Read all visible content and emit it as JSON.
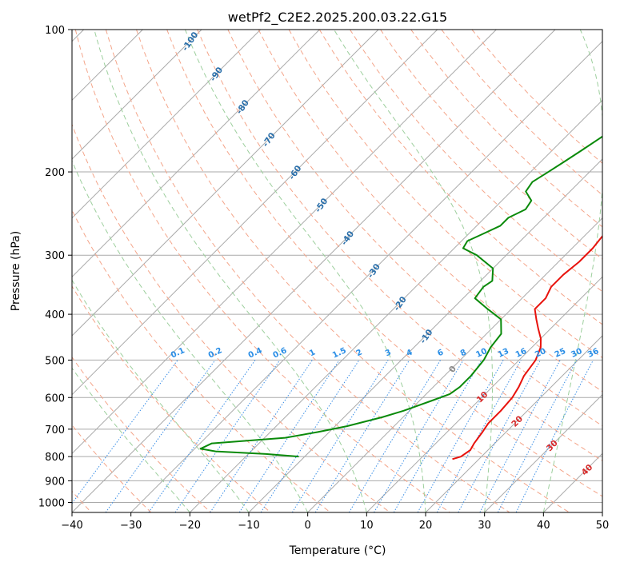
{
  "chart_data": {
    "type": "line",
    "title": "wetPf2_C2E2.2025.200.03.22.G15",
    "xlabel": "Temperature (°C)",
    "ylabel": "Pressure (hPa)",
    "xlim": [
      -40,
      50
    ],
    "ylim": [
      1050,
      100
    ],
    "y_scale": "log",
    "grid": true,
    "x_ticks": [
      -40,
      -30,
      -20,
      -10,
      0,
      10,
      20,
      30,
      40,
      50
    ],
    "x_tick_labels": [
      "−40",
      "−30",
      "−20",
      "−10",
      "0",
      "10",
      "20",
      "30",
      "40",
      "50"
    ],
    "y_ticks": [
      100,
      200,
      300,
      400,
      500,
      600,
      700,
      800,
      900,
      1000
    ],
    "y_tick_labels": [
      "100",
      "200",
      "300",
      "400",
      "500",
      "600",
      "700",
      "800",
      "900",
      "1000"
    ],
    "skew": 45,
    "colors": {
      "temperature": "#e8120c",
      "dewpoint": "#0a8a0a",
      "isotherm": "#aaaaaa",
      "dry_adiabat": "#f4a58a",
      "moist_adiabat": "#9dcf9d",
      "mixing_ratio": "#3a8ee6",
      "dry_adiabat_label": "#d62a2a",
      "moist_adiabat_label": "#2a6faa",
      "mixing_ratio_label": "#2a8ee6",
      "special_adiabat": "#e0cdb0"
    },
    "series": [
      {
        "key": "temperature",
        "points": [
          [
            18.0,
            100
          ],
          [
            14.0,
            110
          ],
          [
            10.0,
            120
          ],
          [
            9.0,
            130
          ],
          [
            8.5,
            140
          ],
          [
            7.5,
            150
          ],
          [
            6.0,
            170
          ],
          [
            5.0,
            190
          ],
          [
            4.5,
            210
          ],
          [
            3.5,
            230
          ],
          [
            3.0,
            250
          ],
          [
            3.0,
            270
          ],
          [
            3.5,
            290
          ],
          [
            3.5,
            310
          ],
          [
            3.0,
            330
          ],
          [
            3.0,
            350
          ],
          [
            4.0,
            370
          ],
          [
            4.0,
            390
          ],
          [
            6.0,
            410
          ],
          [
            8.0,
            430
          ],
          [
            10.0,
            450
          ],
          [
            11.5,
            470
          ],
          [
            12.8,
            500
          ],
          [
            13.5,
            540
          ],
          [
            14.5,
            570
          ],
          [
            15.2,
            600
          ],
          [
            15.5,
            640
          ],
          [
            15.5,
            680
          ],
          [
            16.0,
            710
          ],
          [
            16.5,
            750
          ],
          [
            17.0,
            775
          ],
          [
            16.5,
            800
          ],
          [
            15.5,
            810
          ]
        ]
      },
      {
        "key": "dewpoint",
        "points": [
          [
            -11.0,
            100
          ],
          [
            -11.0,
            110
          ],
          [
            -11.5,
            120
          ],
          [
            -11.0,
            130
          ],
          [
            -12.0,
            140
          ],
          [
            -13.0,
            150
          ],
          [
            -13.0,
            160
          ],
          [
            -14.0,
            170
          ],
          [
            -15.0,
            180
          ],
          [
            -16.0,
            190
          ],
          [
            -17.0,
            200
          ],
          [
            -18.0,
            210
          ],
          [
            -17.5,
            220
          ],
          [
            -15.0,
            230
          ],
          [
            -14.5,
            240
          ],
          [
            -16.0,
            250
          ],
          [
            -16.0,
            260
          ],
          [
            -17.5,
            270
          ],
          [
            -19.0,
            280
          ],
          [
            -18.5,
            290
          ],
          [
            -15.0,
            300
          ],
          [
            -10.0,
            320
          ],
          [
            -8.0,
            340
          ],
          [
            -8.5,
            350
          ],
          [
            -8.0,
            370
          ],
          [
            -4.0,
            390
          ],
          [
            0.0,
            410
          ],
          [
            2.5,
            440
          ],
          [
            3.0,
            470
          ],
          [
            4.0,
            500
          ],
          [
            4.5,
            540
          ],
          [
            4.5,
            570
          ],
          [
            4.0,
            590
          ],
          [
            2.0,
            610
          ],
          [
            -1.0,
            640
          ],
          [
            -3.5,
            660
          ],
          [
            -8.0,
            690
          ],
          [
            -12.0,
            710
          ],
          [
            -16.5,
            730
          ],
          [
            -28.0,
            750
          ],
          [
            -29.0,
            770
          ],
          [
            -26.0,
            780
          ],
          [
            -17.0,
            790
          ],
          [
            -11.0,
            800
          ]
        ]
      }
    ],
    "dry_adiabats": [
      -50,
      -40,
      -30,
      -20,
      -10,
      0,
      10,
      20,
      30,
      40,
      50,
      60,
      70,
      80,
      90,
      100,
      110,
      120,
      130,
      140,
      150
    ],
    "moist_adiabats": [
      -20,
      -10,
      0,
      10,
      20,
      30,
      40
    ],
    "mixing_ratios": [
      0.1,
      0.2,
      0.4,
      0.6,
      1,
      1.5,
      2,
      3,
      4,
      6,
      8,
      10,
      13,
      16,
      20,
      25,
      30,
      36
    ],
    "mixing_ratio_labels": [
      "0.1",
      "0.2",
      "0.4",
      "0.6",
      "1",
      "1.5",
      "2",
      "3",
      "4",
      "6",
      "8",
      "10",
      "13",
      "16",
      "20",
      "25",
      "30",
      "36"
    ],
    "dry_adiabat_labels": [
      "10",
      "20",
      "30",
      "40"
    ],
    "moist_adiabat_labels": [
      "-100",
      "-90",
      "-80",
      "-70",
      "-60",
      "-50",
      "-40",
      "-30",
      "-20",
      "-10",
      "0"
    ]
  }
}
